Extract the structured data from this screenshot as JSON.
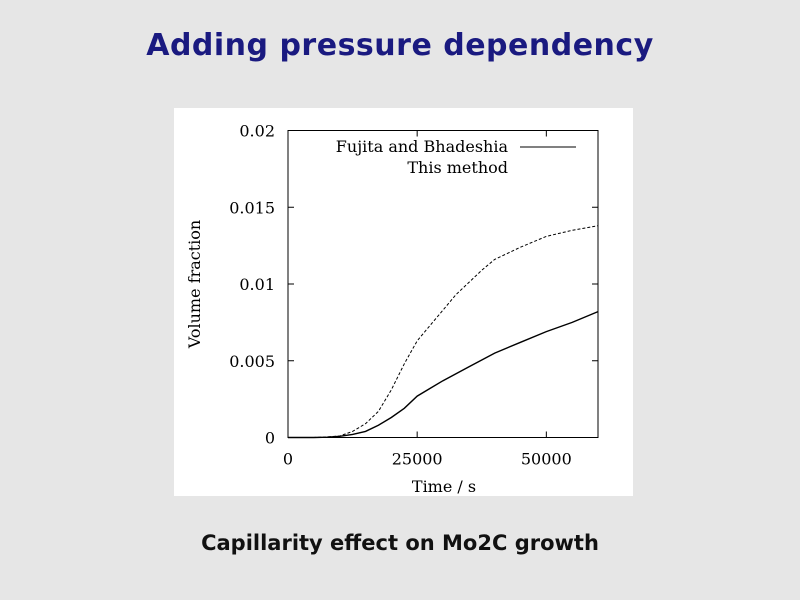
{
  "slide": {
    "title": "Adding pressure dependency",
    "caption": "Capillarity effect on Mo2C growth"
  },
  "chart_data": {
    "type": "line",
    "title": "",
    "xlabel": "Time / s",
    "ylabel": "Volume fraction",
    "xlim": [
      0,
      60000
    ],
    "ylim": [
      0,
      0.02
    ],
    "xticks": [
      0,
      25000,
      50000
    ],
    "xtick_labels": [
      "0",
      "25000",
      "50000"
    ],
    "yticks": [
      0,
      0.005,
      0.01,
      0.015,
      0.02
    ],
    "ytick_labels": [
      "0",
      "0.005",
      "0.01",
      "0.015",
      "0.02"
    ],
    "grid": false,
    "legend_position": "top-right",
    "series": [
      {
        "name": "Fujita and Bhadeshia",
        "style": "solid",
        "color": "#000000",
        "x": [
          0,
          5000,
          7500,
          10000,
          12500,
          15000,
          17500,
          20000,
          22500,
          25000,
          27500,
          30000,
          35000,
          40000,
          45000,
          50000,
          55000,
          60000
        ],
        "y": [
          0,
          0,
          2e-05,
          8e-05,
          0.0002,
          0.0004,
          0.0008,
          0.0013,
          0.0019,
          0.0027,
          0.0032,
          0.0037,
          0.0046,
          0.0055,
          0.0062,
          0.0069,
          0.0075,
          0.0082
        ]
      },
      {
        "name": "This method",
        "style": "dashed",
        "color": "#000000",
        "x": [
          0,
          5000,
          7500,
          10000,
          12500,
          15000,
          17500,
          20000,
          22500,
          25000,
          27500,
          30000,
          32500,
          35000,
          37500,
          40000,
          45000,
          50000,
          55000,
          60000
        ],
        "y": [
          0,
          0,
          3e-05,
          0.0001,
          0.0004,
          0.0009,
          0.0017,
          0.0031,
          0.0048,
          0.0063,
          0.0073,
          0.0083,
          0.0093,
          0.0101,
          0.0109,
          0.0116,
          0.0124,
          0.0131,
          0.0135,
          0.0138
        ]
      }
    ]
  }
}
